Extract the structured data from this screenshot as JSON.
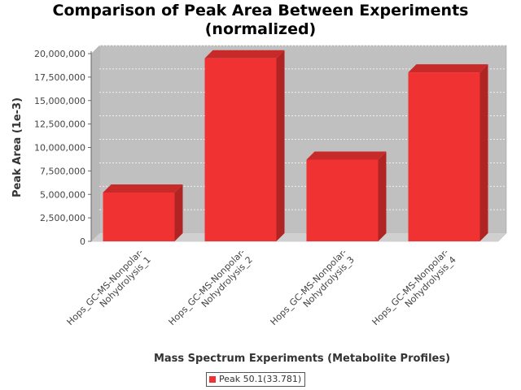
{
  "chart_data": {
    "type": "bar",
    "title_lines": [
      "Comparison of Peak Area Between Experiments",
      "(normalized)"
    ],
    "xlabel": "Mass Spectrum Experiments (Metabolite Profiles)",
    "ylabel": "Peak Area (1e-3)",
    "categories": [
      [
        "Hops_GC-MS-Nonpolar-",
        "Nohydrolysis_1"
      ],
      [
        "Hops_GC-MS-Nonpolar-",
        "Nohydrolysis_2"
      ],
      [
        "Hops_GC-MS-Nonpolar-",
        "Nohydrolysis_3"
      ],
      [
        "Hops_GC-MS-Nonpolar-",
        "Nohydrolysis_4"
      ]
    ],
    "series": [
      {
        "name": "Peak 50.1(33.781)",
        "color": "#f03232",
        "values": [
          5200000,
          19500000,
          8700000,
          18000000
        ]
      }
    ],
    "ylim": [
      0,
      20000000
    ],
    "yticks": [
      0,
      2500000,
      5000000,
      7500000,
      10000000,
      12500000,
      15000000,
      17500000,
      20000000
    ],
    "ytick_labels": [
      "0",
      "2,500,000",
      "5,000,000",
      "7,500,000",
      "10,000,000",
      "12,500,000",
      "15,000,000",
      "17,500,000",
      "20,000,000"
    ],
    "grid": true,
    "style": "3d",
    "legend_position": "bottom-center",
    "plot_background": "#c0c0c0"
  }
}
